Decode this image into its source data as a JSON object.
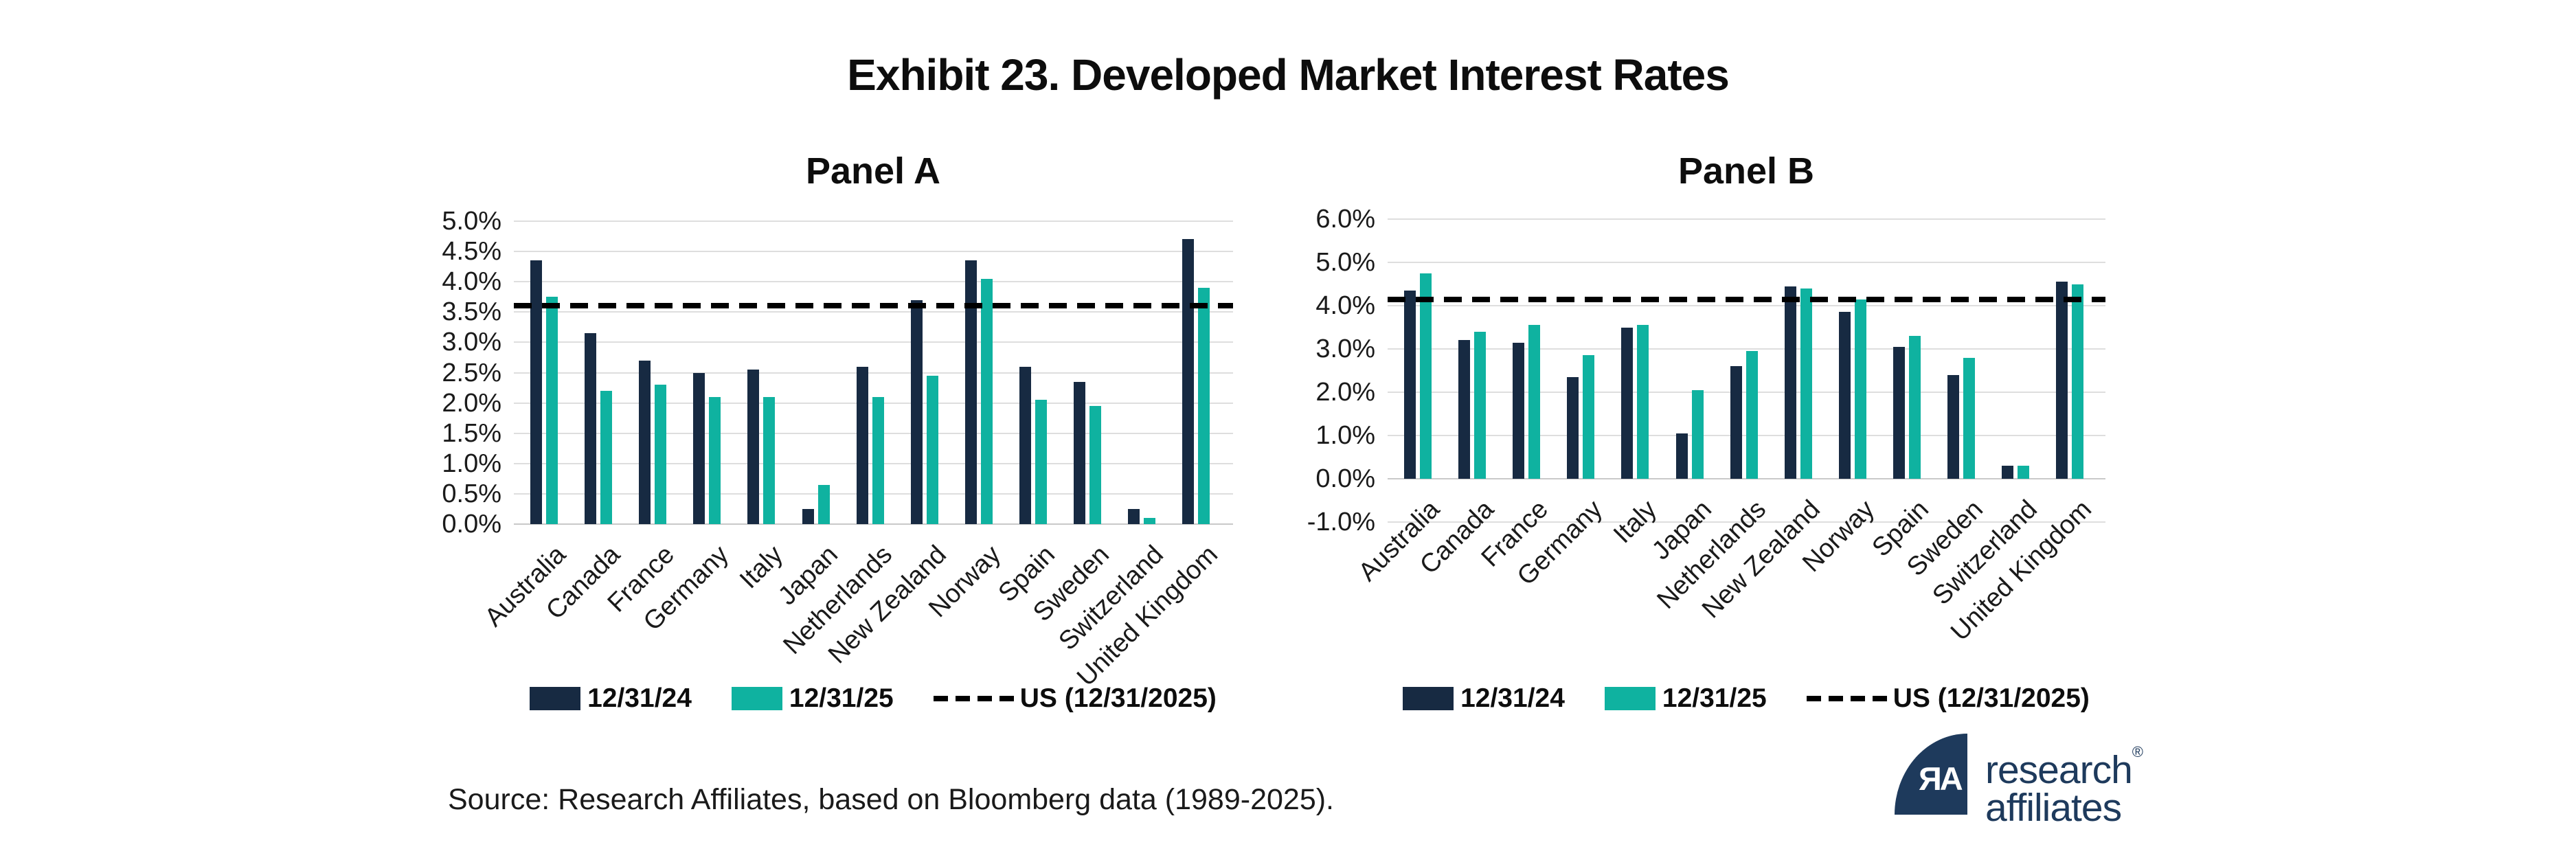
{
  "title": "Exhibit 23. Developed Market Interest Rates",
  "source": "Source: Research Affiliates, based on Bloomberg data (1989-2025).",
  "logo": {
    "mark": "ЯA",
    "line1": "research",
    "reg": "®",
    "line2": "affiliates"
  },
  "legend": {
    "series1": "12/31/24",
    "series2": "12/31/25",
    "us": "US (12/31/2025)"
  },
  "colors": {
    "navy": "#172a42",
    "teal": "#0fb2a0",
    "grid": "#dedede",
    "dash": "#000000",
    "logo_navy": "#1e3a5c"
  },
  "chart_data": [
    {
      "type": "bar",
      "title": "Panel A",
      "categories": [
        "Australia",
        "Canada",
        "France",
        "Germany",
        "Italy",
        "Japan",
        "Netherlands",
        "New Zealand",
        "Norway",
        "Spain",
        "Sweden",
        "Switzerland",
        "United Kingdom"
      ],
      "series": [
        {
          "name": "12/31/24",
          "color_key": "navy",
          "values": [
            4.35,
            3.15,
            2.7,
            2.5,
            2.55,
            0.25,
            2.6,
            3.7,
            4.35,
            2.6,
            2.35,
            0.25,
            4.7
          ]
        },
        {
          "name": "12/31/25",
          "color_key": "teal",
          "values": [
            3.75,
            2.2,
            2.3,
            2.1,
            2.1,
            0.65,
            2.1,
            2.45,
            4.05,
            2.05,
            1.95,
            0.1,
            3.9
          ]
        }
      ],
      "us_line": {
        "label": "US (12/31/2025)",
        "value": 3.6
      },
      "ylim": [
        0,
        5
      ],
      "ytick_step": 0.5,
      "ytick_labels": [
        "5.0%",
        "4.5%",
        "4.0%",
        "3.5%",
        "3.0%",
        "2.5%",
        "2.0%",
        "1.5%",
        "1.0%",
        "0.5%",
        "0.0%"
      ],
      "xlabel": "",
      "ylabel": "",
      "grid": true,
      "legend_position": "bottom"
    },
    {
      "type": "bar",
      "title": "Panel B",
      "categories": [
        "Australia",
        "Canada",
        "France",
        "Germany",
        "Italy",
        "Japan",
        "Netherlands",
        "New Zealand",
        "Norway",
        "Spain",
        "Sweden",
        "Switzerland",
        "United Kingdom"
      ],
      "series": [
        {
          "name": "12/31/24",
          "color_key": "navy",
          "values": [
            4.35,
            3.2,
            3.15,
            2.35,
            3.5,
            1.05,
            2.6,
            4.45,
            3.85,
            3.05,
            2.4,
            0.3,
            4.55
          ]
        },
        {
          "name": "12/31/25",
          "color_key": "teal",
          "values": [
            4.75,
            3.4,
            3.55,
            2.85,
            3.55,
            2.05,
            2.95,
            4.4,
            4.15,
            3.3,
            2.8,
            0.3,
            4.5
          ]
        }
      ],
      "us_line": {
        "label": "US (12/31/2025)",
        "value": 4.15
      },
      "ylim": [
        -1,
        6
      ],
      "ytick_step": 1,
      "ytick_labels": [
        "6.0%",
        "5.0%",
        "4.0%",
        "3.0%",
        "2.0%",
        "1.0%",
        "0.0%",
        "-1.0%"
      ],
      "xlabel": "",
      "ylabel": "",
      "grid": true,
      "legend_position": "bottom"
    }
  ]
}
